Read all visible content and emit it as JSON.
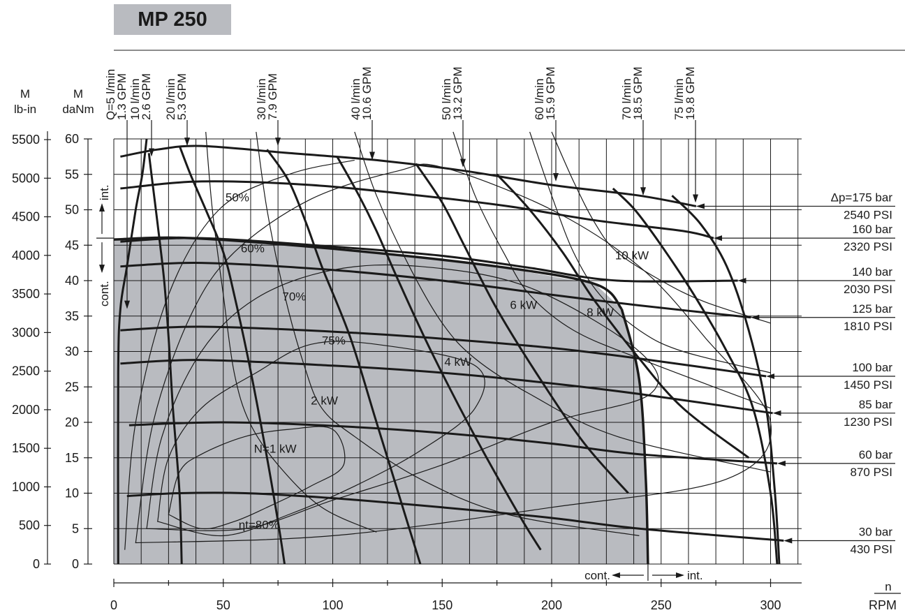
{
  "title": "MP 250",
  "chart_data": {
    "type": "line",
    "x_axis": {
      "label_top": "n",
      "label": "RPM",
      "range": [
        0,
        300
      ],
      "ticks": [
        "0",
        "50",
        "100",
        "150",
        "200",
        "250",
        "300"
      ]
    },
    "y_axis_left_outer": {
      "label": [
        "M",
        "lb-in"
      ],
      "range": [
        0,
        5500
      ],
      "ticks": [
        "0",
        "500",
        "1000",
        "1500",
        "2000",
        "2500",
        "3000",
        "3500",
        "4000",
        "4500",
        "5000",
        "5500"
      ]
    },
    "y_axis_left_inner": {
      "label": [
        "M",
        "daNm"
      ],
      "range": [
        0,
        60
      ],
      "ticks": [
        "0",
        "5",
        "10",
        "15",
        "20",
        "25",
        "30",
        "35",
        "40",
        "45",
        "50",
        "55",
        "60"
      ]
    },
    "colors": {
      "continuous_region": "#b9bbc0",
      "lines": "#1a1a1a",
      "title_box": "#b9bbc0"
    },
    "continuous_region": {
      "boundary": [
        [
          0,
          45.8
        ],
        [
          35,
          46
        ],
        [
          100,
          44.5
        ],
        [
          175,
          42
        ],
        [
          220,
          39.5
        ],
        [
          232,
          36
        ],
        [
          240,
          26
        ],
        [
          243,
          12
        ],
        [
          244,
          0
        ]
      ]
    },
    "mode_labels": {
      "torque_int": "int.",
      "torque_cont": "cont.",
      "speed_cont": "cont.",
      "speed_int": "int.",
      "torque_divider": 46,
      "speed_divider": 244
    },
    "flow_lines": [
      {
        "label_top": "Q=5 l/min",
        "label_bottom": "1.3 GPM",
        "arrow_x": 5,
        "arrow_y": 36,
        "points": [
          [
            15,
            60
          ],
          [
            13,
            55
          ],
          [
            10,
            50
          ],
          [
            6,
            42
          ],
          [
            3,
            36
          ],
          [
            2,
            27
          ],
          [
            2,
            0
          ]
        ]
      },
      {
        "label_top": "10 l/min",
        "label_bottom": "2.6 GPM",
        "arrow_x": 17,
        "arrow_y": 57.5,
        "points": [
          [
            16,
            58
          ],
          [
            18,
            53
          ],
          [
            20,
            48
          ],
          [
            23,
            40
          ],
          [
            25,
            32
          ],
          [
            27,
            22
          ],
          [
            30,
            10
          ],
          [
            31,
            0
          ]
        ]
      },
      {
        "label_top": "20 l/min",
        "label_bottom": "5.3 GPM",
        "arrow_x": 33,
        "arrow_y": 59,
        "points": [
          [
            30,
            59
          ],
          [
            35,
            55
          ],
          [
            42,
            50
          ],
          [
            50,
            44
          ],
          [
            55,
            38
          ],
          [
            62,
            28
          ],
          [
            70,
            15
          ],
          [
            75,
            6
          ],
          [
            78,
            0
          ]
        ]
      },
      {
        "label_top": "30 l/min",
        "label_bottom": "7.9 GPM",
        "arrow_x": 74,
        "arrow_y": 59,
        "points": [
          [
            70,
            58.5
          ],
          [
            80,
            54
          ],
          [
            88,
            48
          ],
          [
            95,
            42
          ],
          [
            108,
            32
          ],
          [
            120,
            20
          ],
          [
            135,
            5
          ],
          [
            140,
            0
          ]
        ]
      },
      {
        "label_top": "40 l/min",
        "label_bottom": "10.6 GPM",
        "arrow_x": 117,
        "arrow_y": 57,
        "points": [
          [
            102,
            57.5
          ],
          [
            112,
            52
          ],
          [
            120,
            47
          ],
          [
            130,
            40
          ],
          [
            145,
            30
          ],
          [
            165,
            18
          ],
          [
            185,
            7
          ],
          [
            195,
            2
          ]
        ]
      },
      {
        "label_top": "50 l/min",
        "label_bottom": "13.2 GPM",
        "arrow_x": 159,
        "arrow_y": 56,
        "points": [
          [
            138,
            56.5
          ],
          [
            150,
            51
          ],
          [
            160,
            45
          ],
          [
            175,
            36
          ],
          [
            195,
            26
          ],
          [
            215,
            17
          ],
          [
            235,
            10
          ]
        ]
      },
      {
        "label_top": "60 l/min",
        "label_bottom": "15.9 GPM",
        "arrow_x": 201,
        "arrow_y": 54,
        "points": [
          [
            175,
            55
          ],
          [
            190,
            50
          ],
          [
            205,
            44
          ],
          [
            220,
            37
          ],
          [
            240,
            29
          ],
          [
            260,
            22
          ],
          [
            290,
            15
          ]
        ]
      },
      {
        "label_top": "70 l/min",
        "label_bottom": "18.5 GPM",
        "arrow_x": 241,
        "arrow_y": 52,
        "points": [
          [
            228,
            53
          ],
          [
            238,
            50
          ],
          [
            250,
            45
          ],
          [
            265,
            38
          ],
          [
            280,
            30
          ],
          [
            292,
            22
          ],
          [
            300,
            10
          ],
          [
            303,
            0
          ]
        ]
      },
      {
        "label_top": "75 l/min",
        "label_bottom": "19.8 GPM",
        "arrow_x": 264,
        "arrow_y": 51,
        "points": [
          [
            255,
            52
          ],
          [
            268,
            48
          ],
          [
            280,
            42
          ],
          [
            290,
            33
          ],
          [
            298,
            22
          ],
          [
            302,
            10
          ],
          [
            304,
            0
          ]
        ]
      }
    ],
    "pressure_lines": [
      {
        "label_top": "Δp=175 bar",
        "label_bottom": "2540 PSI",
        "arrow_x": 266,
        "y": 50.5,
        "points": [
          [
            3,
            57.5
          ],
          [
            20,
            58.5
          ],
          [
            40,
            59
          ],
          [
            80,
            58
          ],
          [
            120,
            57
          ],
          [
            160,
            55.5
          ],
          [
            200,
            53.5
          ],
          [
            240,
            52
          ],
          [
            266,
            50.5
          ]
        ]
      },
      {
        "label_top": "160 bar",
        "label_bottom": "2320 PSI",
        "arrow_x": 274,
        "y": 46,
        "points": [
          [
            3,
            53
          ],
          [
            40,
            54
          ],
          [
            90,
            53.5
          ],
          [
            140,
            52
          ],
          [
            180,
            50.5
          ],
          [
            220,
            48.5
          ],
          [
            260,
            47
          ],
          [
            274,
            46
          ]
        ]
      },
      {
        "label_top": "140 bar",
        "label_bottom": "2030 PSI",
        "arrow_x": 285,
        "y": 40,
        "points": [
          [
            3,
            45.5
          ],
          [
            40,
            46
          ],
          [
            100,
            44.8
          ],
          [
            150,
            43.5
          ],
          [
            190,
            41.8
          ],
          [
            230,
            40
          ],
          [
            285,
            40
          ]
        ]
      },
      {
        "label_top": "125 bar",
        "label_bottom": "1810 PSI",
        "arrow_x": 291,
        "y": 34.8,
        "points": [
          [
            3,
            42
          ],
          [
            40,
            42.5
          ],
          [
            100,
            41.5
          ],
          [
            150,
            40
          ],
          [
            200,
            38
          ],
          [
            240,
            36.5
          ],
          [
            291,
            34.8
          ]
        ]
      },
      {
        "label_top": "100 bar",
        "label_bottom": "1450 PSI",
        "arrow_x": 298,
        "y": 26.5,
        "points": [
          [
            3,
            33
          ],
          [
            40,
            33.5
          ],
          [
            100,
            32.8
          ],
          [
            150,
            31.8
          ],
          [
            200,
            30.5
          ],
          [
            240,
            29
          ],
          [
            298,
            26.5
          ]
        ]
      },
      {
        "label_top": "85 bar",
        "label_bottom": "1230 PSI",
        "arrow_x": 301,
        "y": 21.3,
        "points": [
          [
            3,
            28.3
          ],
          [
            40,
            28.8
          ],
          [
            100,
            28
          ],
          [
            150,
            27
          ],
          [
            200,
            25.5
          ],
          [
            240,
            24
          ],
          [
            301,
            21.3
          ]
        ]
      },
      {
        "label_top": "60 bar",
        "label_bottom": "870 PSI",
        "arrow_x": 303,
        "y": 14.2,
        "points": [
          [
            7,
            19.6
          ],
          [
            50,
            20
          ],
          [
            100,
            19.5
          ],
          [
            150,
            18.5
          ],
          [
            200,
            17
          ],
          [
            240,
            15.5
          ],
          [
            303,
            14.2
          ]
        ]
      },
      {
        "label_top": "30 bar",
        "label_bottom": "430 PSI",
        "arrow_x": 306,
        "y": 3.3,
        "points": [
          [
            6,
            9.6
          ],
          [
            30,
            10
          ],
          [
            60,
            10
          ],
          [
            100,
            9.3
          ],
          [
            150,
            8
          ],
          [
            200,
            6.5
          ],
          [
            240,
            5
          ],
          [
            306,
            3.3
          ]
        ]
      }
    ],
    "efficiency_curves": [
      {
        "label": "ηt=80%",
        "label_x": 57,
        "label_y": 5,
        "points": [
          [
            25,
            7
          ],
          [
            30,
            13
          ],
          [
            40,
            15.5
          ],
          [
            60,
            18
          ],
          [
            80,
            19
          ],
          [
            100,
            19
          ],
          [
            105,
            14
          ],
          [
            90,
            11
          ],
          [
            70,
            8
          ],
          [
            55,
            6
          ],
          [
            40,
            5
          ],
          [
            25,
            7
          ]
        ]
      },
      {
        "label": "75%",
        "label_x": 95,
        "label_y": 31,
        "points": [
          [
            20,
            6
          ],
          [
            25,
            15
          ],
          [
            40,
            22
          ],
          [
            65,
            27
          ],
          [
            90,
            31
          ],
          [
            120,
            31
          ],
          [
            165,
            28
          ],
          [
            165,
            22
          ],
          [
            140,
            16
          ],
          [
            110,
            11
          ],
          [
            80,
            7
          ],
          [
            50,
            4
          ],
          [
            20,
            6
          ]
        ]
      },
      {
        "label": "70%",
        "label_x": 77,
        "label_y": 37.2,
        "points": [
          [
            15,
            5
          ],
          [
            22,
            18
          ],
          [
            40,
            30
          ],
          [
            65,
            37.5
          ],
          [
            100,
            41.5
          ],
          [
            140,
            42
          ],
          [
            190,
            39
          ],
          [
            240,
            30
          ],
          [
            245,
            24
          ],
          [
            200,
            20
          ],
          [
            150,
            14
          ],
          [
            100,
            9
          ],
          [
            60,
            5
          ],
          [
            15,
            5
          ]
        ]
      },
      {
        "label": "60%",
        "label_x": 58,
        "label_y": 44,
        "points": [
          [
            10,
            3
          ],
          [
            18,
            20
          ],
          [
            35,
            35
          ],
          [
            55,
            44
          ],
          [
            90,
            51.5
          ],
          [
            130,
            55.5
          ],
          [
            150,
            56
          ],
          [
            200,
            50
          ],
          [
            240,
            42
          ],
          [
            270,
            32
          ],
          [
            300,
            20
          ],
          [
            280,
            12
          ],
          [
            200,
            8
          ],
          [
            100,
            4
          ],
          [
            10,
            3
          ]
        ]
      },
      {
        "label": "50%",
        "label_x": 51,
        "label_y": 51.2,
        "points": [
          [
            5,
            2
          ],
          [
            10,
            20
          ],
          [
            25,
            38
          ],
          [
            48,
            50
          ],
          [
            80,
            55
          ],
          [
            110,
            57
          ]
        ]
      }
    ],
    "power_curves": [
      {
        "label": "N=1 kW",
        "label_x": 64,
        "label_y": 15.7,
        "points": [
          [
            42,
            61
          ],
          [
            45,
            50
          ],
          [
            50,
            38
          ],
          [
            55,
            27
          ],
          [
            62,
            20
          ],
          [
            75,
            14
          ],
          [
            95,
            8
          ],
          [
            120,
            4.5
          ]
        ]
      },
      {
        "label": "2 kW",
        "label_x": 90,
        "label_y": 22.5,
        "points": [
          [
            65,
            61
          ],
          [
            70,
            50
          ],
          [
            78,
            38
          ],
          [
            87,
            28
          ],
          [
            95,
            22
          ],
          [
            110,
            18
          ],
          [
            140,
            12
          ],
          [
            180,
            7
          ],
          [
            240,
            4
          ]
        ]
      },
      {
        "label": "4 kW",
        "label_x": 151,
        "label_y": 28,
        "points": [
          [
            110,
            61
          ],
          [
            120,
            52
          ],
          [
            135,
            42
          ],
          [
            150,
            34
          ],
          [
            165,
            29
          ],
          [
            190,
            24
          ],
          [
            230,
            18
          ],
          [
            300,
            13
          ]
        ]
      },
      {
        "label": "6 kW",
        "label_x": 181,
        "label_y": 36,
        "points": [
          [
            155,
            61
          ],
          [
            165,
            52
          ],
          [
            178,
            44
          ],
          [
            190,
            38
          ],
          [
            210,
            33
          ],
          [
            240,
            29
          ],
          [
            300,
            22
          ]
        ]
      },
      {
        "label": "8 kW",
        "label_x": 216,
        "label_y": 35,
        "points": [
          [
            190,
            61
          ],
          [
            200,
            52
          ],
          [
            210,
            44
          ],
          [
            222,
            38
          ],
          [
            240,
            33
          ],
          [
            260,
            30
          ],
          [
            300,
            27
          ]
        ]
      },
      {
        "label": "10 kW",
        "label_x": 229,
        "label_y": 43,
        "points": [
          [
            200,
            61
          ],
          [
            210,
            54
          ],
          [
            220,
            48
          ],
          [
            230,
            44
          ],
          [
            250,
            40
          ],
          [
            270,
            37
          ],
          [
            300,
            34
          ]
        ]
      }
    ]
  }
}
